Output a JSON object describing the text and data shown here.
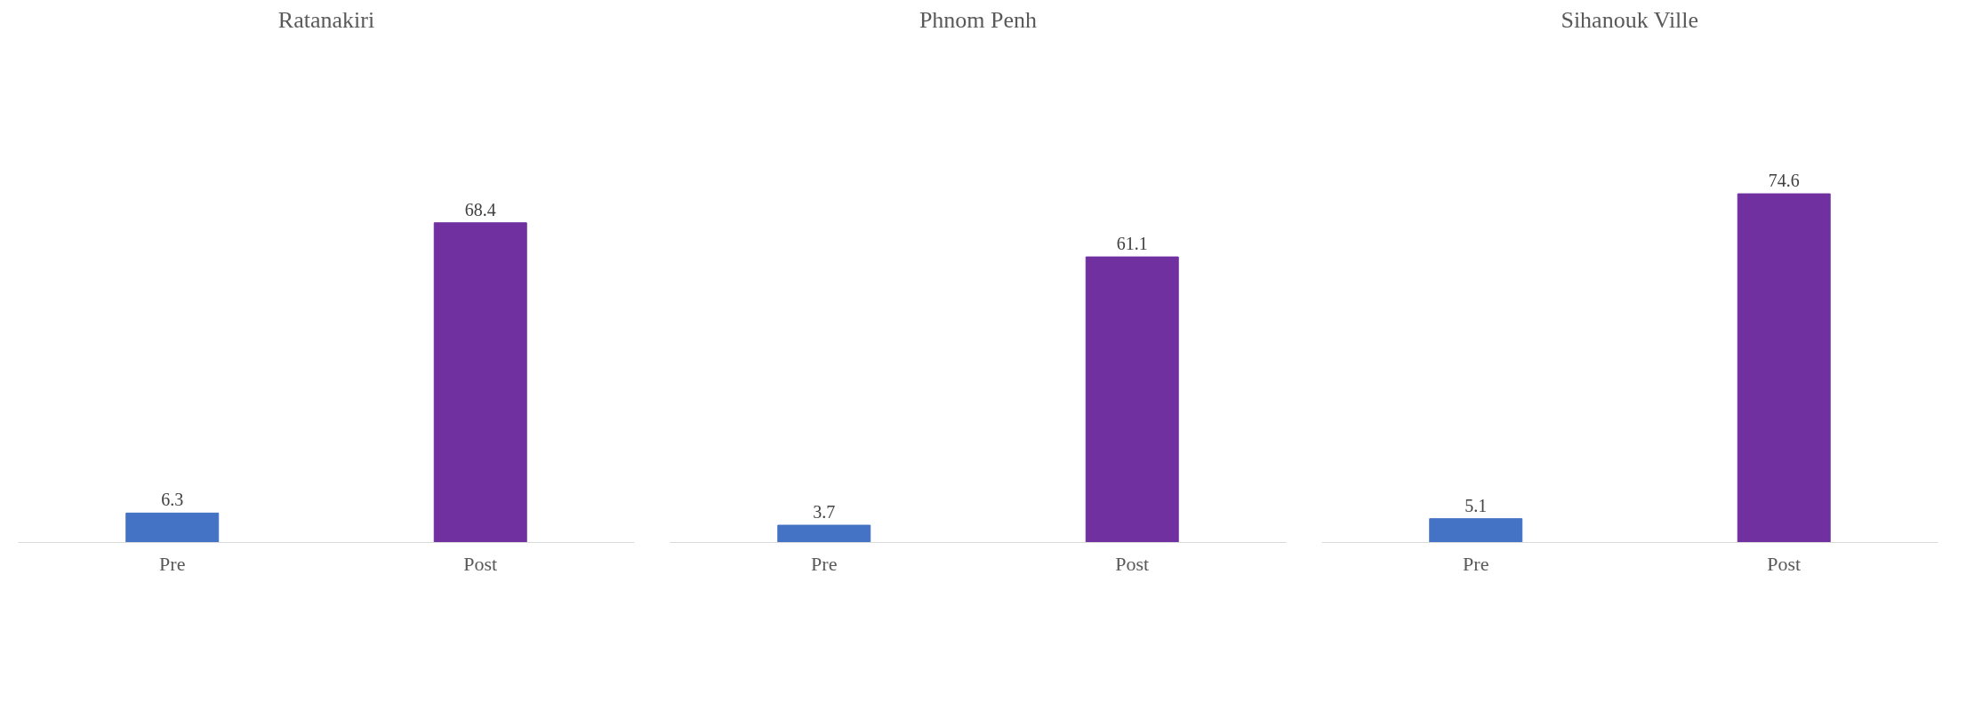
{
  "chart_data": [
    {
      "type": "bar",
      "title": "Ratanakiri",
      "categories": [
        "Pre",
        "Post"
      ],
      "values": [
        6.3,
        68.4
      ],
      "colors": [
        "#4472c4",
        "#7030a0"
      ],
      "data_labels": true,
      "grid": false
    },
    {
      "type": "bar",
      "title": "Phnom Penh",
      "categories": [
        "Pre",
        "Post"
      ],
      "values": [
        3.7,
        61.1
      ],
      "colors": [
        "#4472c4",
        "#7030a0"
      ],
      "data_labels": true,
      "grid": false
    },
    {
      "type": "bar",
      "title": "Sihanouk Ville",
      "categories": [
        "Pre",
        "Post"
      ],
      "values": [
        5.1,
        74.6
      ],
      "colors": [
        "#4472c4",
        "#7030a0"
      ],
      "data_labels": true,
      "grid": false
    }
  ]
}
